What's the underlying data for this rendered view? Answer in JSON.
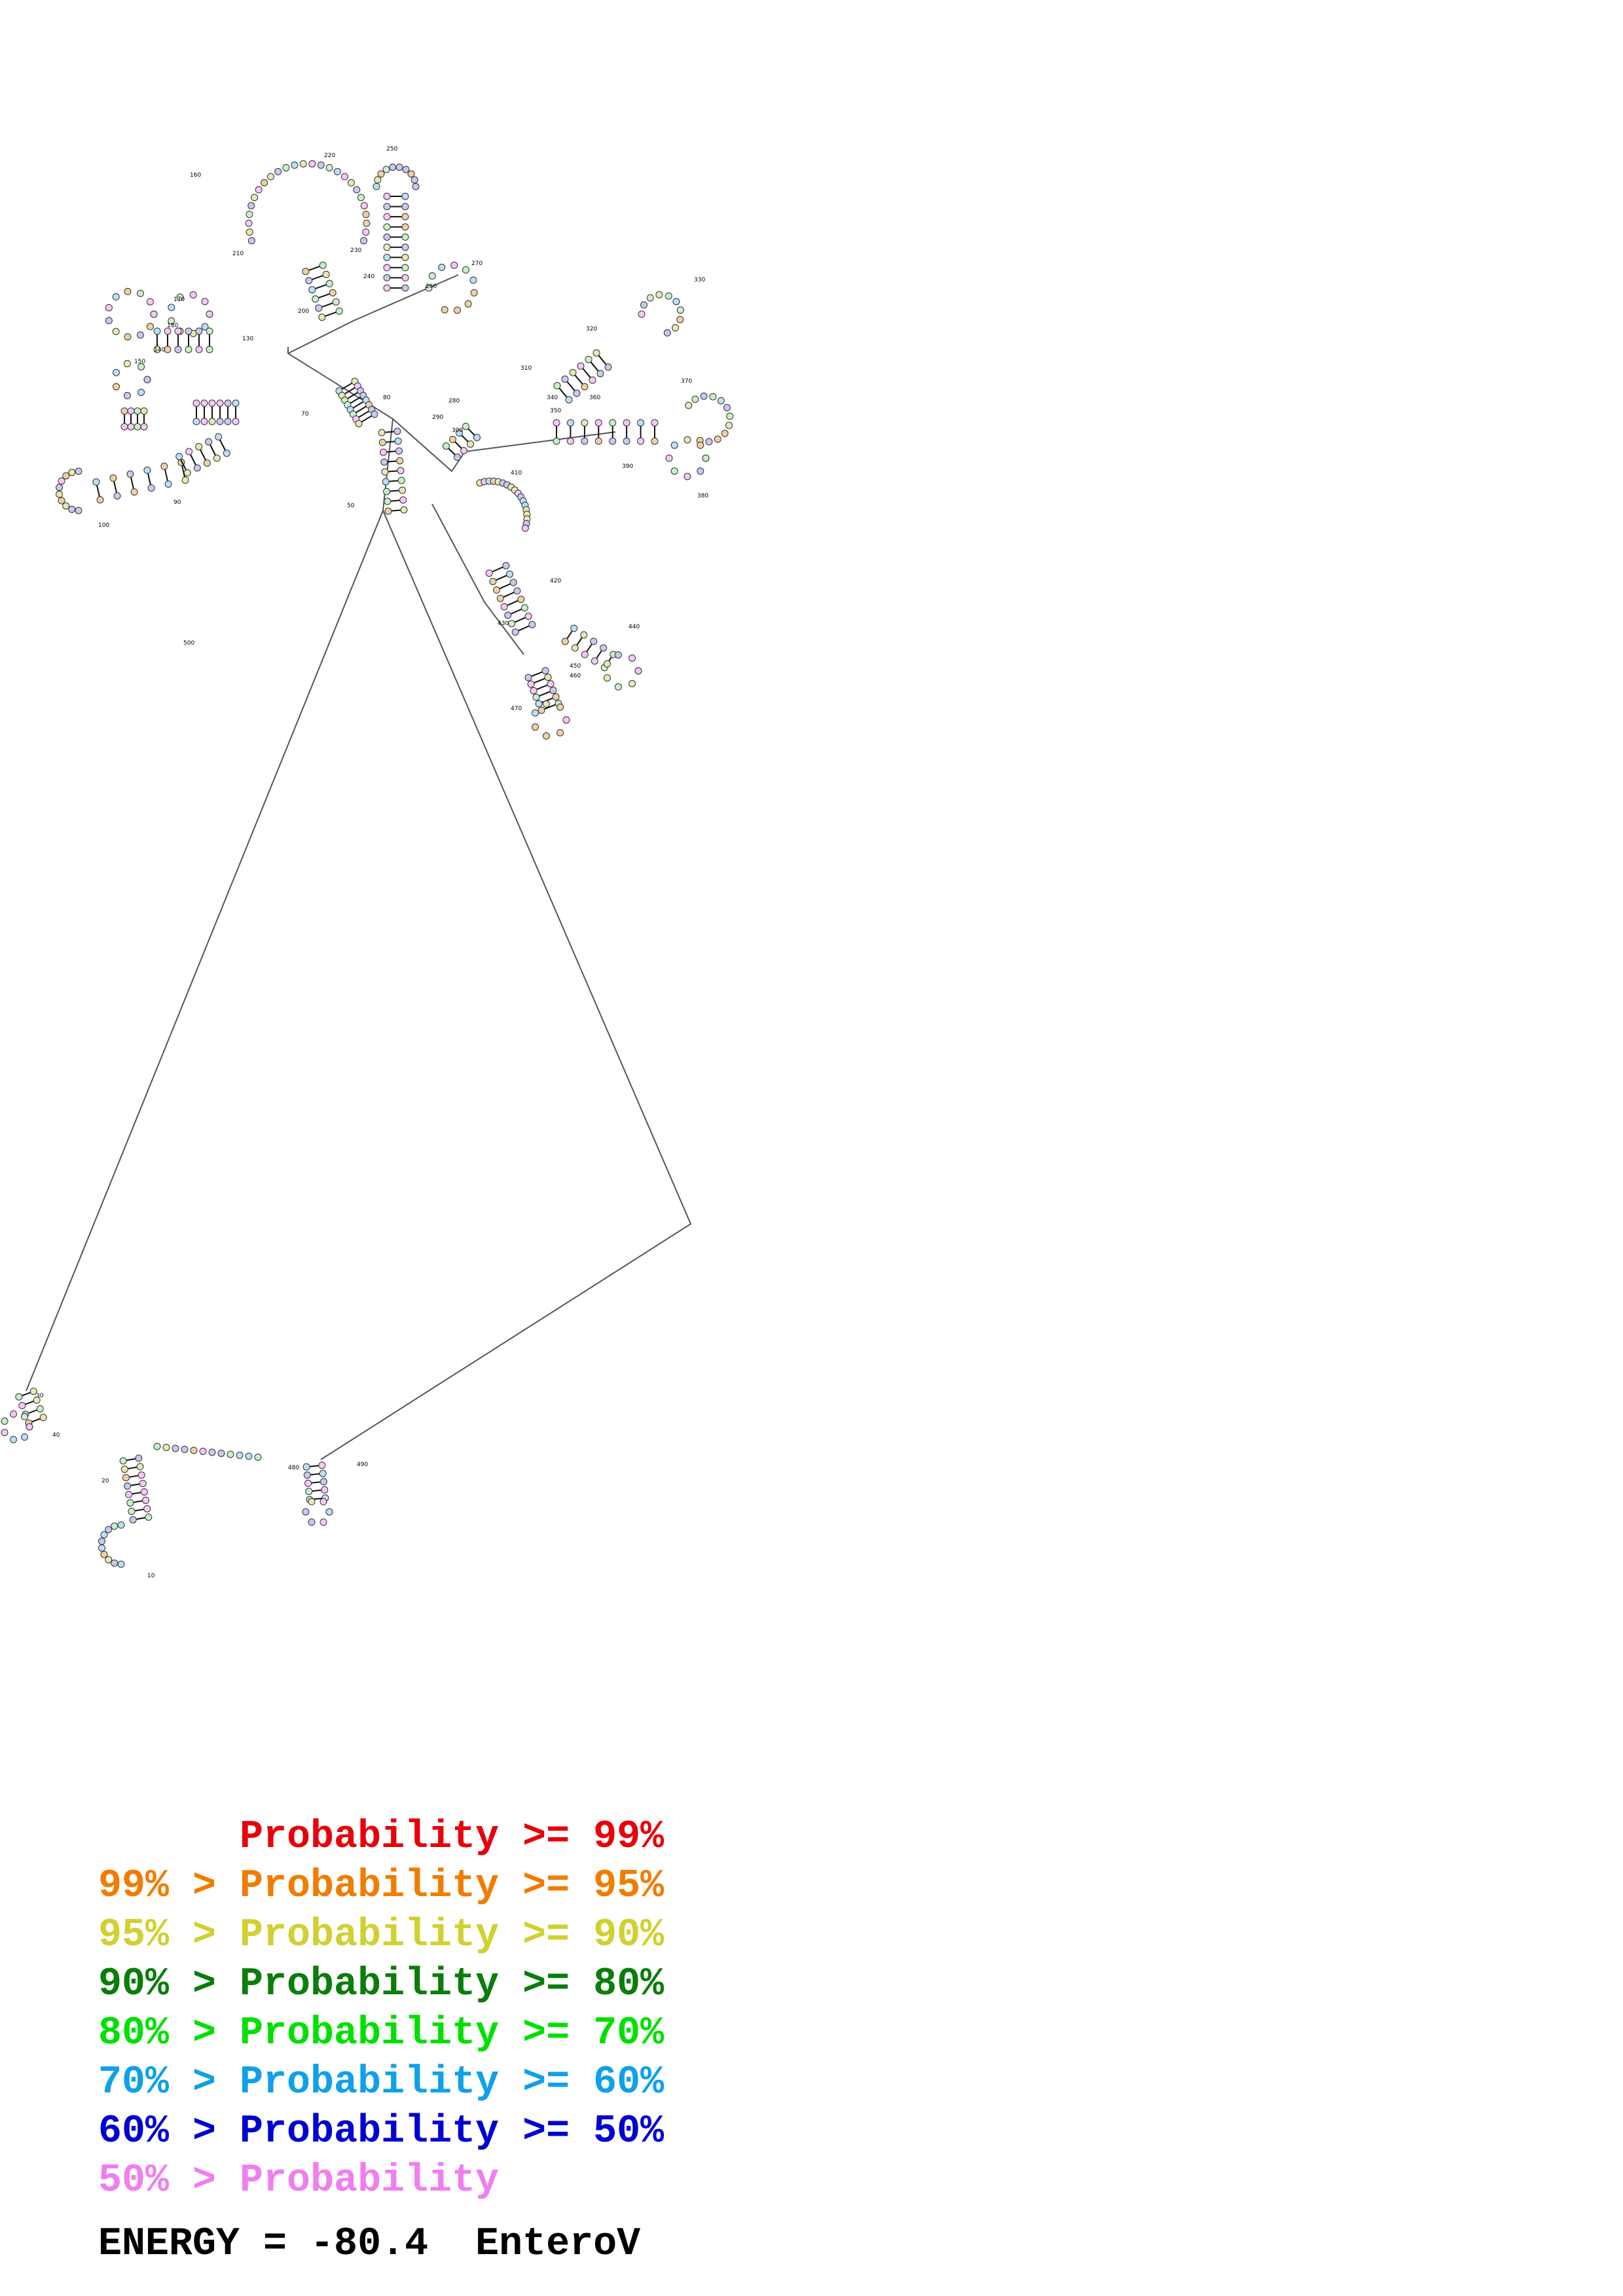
{
  "diagram": {
    "type": "RNA secondary structure (base-pair probability colored)",
    "position_labels": [
      "10",
      "20",
      "30",
      "40",
      "50",
      "70",
      "80",
      "90",
      "100",
      "130",
      "140",
      "150",
      "160",
      "170",
      "180",
      "200",
      "210",
      "220",
      "230",
      "240",
      "250",
      "260",
      "270",
      "280",
      "290",
      "300",
      "310",
      "320",
      "330",
      "340",
      "350",
      "360",
      "370",
      "380",
      "390",
      "410",
      "420",
      "430",
      "440",
      "450",
      "460",
      "470",
      "480",
      "490",
      "500"
    ]
  },
  "legend": {
    "items": [
      {
        "text": "      Probability >= 99%",
        "color": "#e8000b"
      },
      {
        "text": "99% > Probability >= 95%",
        "color": "#f07c00"
      },
      {
        "text": "95% > Probability >= 90%",
        "color": "#d0d030"
      },
      {
        "text": "90% > Probability >= 80%",
        "color": "#0a7d0a"
      },
      {
        "text": "80% > Probability >= 70%",
        "color": "#00e000"
      },
      {
        "text": "70% > Probability >= 60%",
        "color": "#10a0e8"
      },
      {
        "text": "60% > Probability >= 50%",
        "color": "#0000d0"
      },
      {
        "text": "50% > Probability",
        "color": "#f07ef0"
      }
    ]
  },
  "energy": {
    "text": "ENERGY = -80.4  EnteroV"
  }
}
